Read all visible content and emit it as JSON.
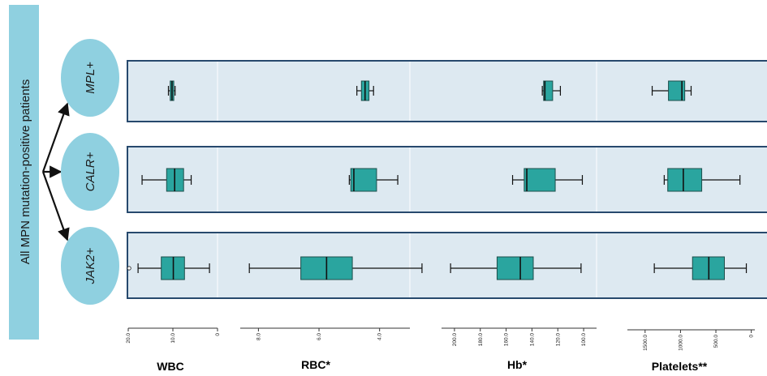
{
  "left_label": "All MPN mutation-positive patients",
  "colors": {
    "box_fill": "#2aa59f",
    "box_stroke": "#1d4f4c",
    "label_fill": "#8fd0e0",
    "row_border": "#27496d"
  },
  "chart_data": {
    "type": "box",
    "title": "",
    "groups": [
      "MPL+",
      "CALR+",
      "JAK2+"
    ],
    "axes_reversed": true,
    "variables": [
      {
        "name": "WBC",
        "xlim": [
          0,
          20
        ],
        "ticks": [
          "20.0",
          "10.0",
          "0"
        ],
        "tick_values": [
          20,
          10,
          0
        ],
        "boxes": [
          {
            "group": "MPL+",
            "whisker_low": 9.5,
            "q1": 9.8,
            "median": 10.2,
            "q3": 10.6,
            "whisker_high": 11.0,
            "outliers": []
          },
          {
            "group": "CALR+",
            "whisker_low": 5.9,
            "q1": 7.6,
            "median": 9.6,
            "q3": 11.4,
            "whisker_high": 16.9,
            "outliers": []
          },
          {
            "group": "JAK2+",
            "whisker_low": 1.8,
            "q1": 7.4,
            "median": 9.9,
            "q3": 12.6,
            "whisker_high": 17.8,
            "outliers": [
              19.8
            ]
          }
        ]
      },
      {
        "name": "RBC*",
        "xlim": [
          3,
          8.6
        ],
        "ticks": [
          "8.0",
          "6.0",
          "4.0"
        ],
        "tick_values": [
          8,
          6,
          4
        ],
        "boxes": [
          {
            "group": "MPL+",
            "whisker_low": 4.2,
            "q1": 4.35,
            "median": 4.48,
            "q3": 4.6,
            "whisker_high": 4.75,
            "outliers": []
          },
          {
            "group": "CALR+",
            "whisker_low": 3.4,
            "q1": 4.1,
            "median": 4.85,
            "q3": 4.95,
            "whisker_high": 5.0,
            "outliers": []
          },
          {
            "group": "JAK2+",
            "whisker_low": 2.6,
            "q1": 4.9,
            "median": 5.75,
            "q3": 6.6,
            "whisker_high": 8.3,
            "outliers": []
          }
        ]
      },
      {
        "name": "Hb*",
        "xlim": [
          90,
          210
        ],
        "ticks": [
          "200.0",
          "180.0",
          "160.0",
          "140.0",
          "120.0",
          "100.0"
        ],
        "tick_values": [
          200,
          180,
          160,
          140,
          120,
          100
        ],
        "boxes": [
          {
            "group": "MPL+",
            "whisker_low": 118,
            "q1": 124,
            "median": 130,
            "q3": 131,
            "whisker_high": 132,
            "outliers": []
          },
          {
            "group": "CALR+",
            "whisker_low": 101,
            "q1": 122,
            "median": 144,
            "q3": 146,
            "whisker_high": 155,
            "outliers": []
          },
          {
            "group": "JAK2+",
            "whisker_low": 102,
            "q1": 139,
            "median": 149,
            "q3": 167,
            "whisker_high": 203,
            "outliers": []
          }
        ]
      },
      {
        "name": "Platelets**",
        "xlim": [
          -50,
          1750
        ],
        "ticks": [
          "1500.0",
          "1000.0",
          "500.0",
          "0"
        ],
        "tick_values": [
          1500,
          1000,
          500,
          0
        ],
        "boxes": [
          {
            "group": "MPL+",
            "whisker_low": 850,
            "q1": 940,
            "median": 980,
            "q3": 1170,
            "whisker_high": 1400,
            "outliers": []
          },
          {
            "group": "CALR+",
            "whisker_low": 160,
            "q1": 700,
            "median": 960,
            "q3": 1180,
            "whisker_high": 1230,
            "outliers": []
          },
          {
            "group": "JAK2+",
            "whisker_low": 70,
            "q1": 380,
            "median": 600,
            "q3": 830,
            "whisker_high": 1370,
            "outliers": []
          }
        ]
      }
    ]
  }
}
